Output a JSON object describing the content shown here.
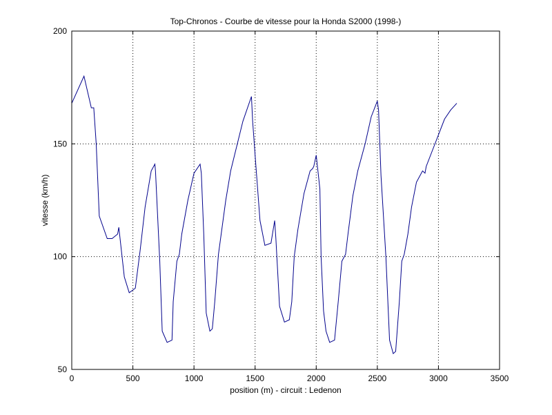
{
  "chart_data": {
    "type": "line",
    "title": "Top-Chronos - Courbe de vitesse pour la Honda S2000 (1998-)",
    "xlabel": "position (m) - circuit : Ledenon",
    "ylabel": "vitesse (km/h)",
    "xlim": [
      0,
      3500
    ],
    "ylim": [
      50,
      200
    ],
    "xticks": [
      0,
      500,
      1000,
      1500,
      2000,
      2500,
      3000,
      3500
    ],
    "yticks": [
      50,
      100,
      150,
      200
    ],
    "grid": true,
    "line_color": "#00008b",
    "series": [
      {
        "x": [
          0,
          100,
          160,
          180,
          200,
          225,
          290,
          330,
          375,
          385,
          430,
          470,
          520,
          560,
          600,
          650,
          680,
          685,
          720,
          740,
          780,
          820,
          830,
          860,
          880,
          900,
          950,
          1000,
          1050,
          1060,
          1080,
          1100,
          1130,
          1150,
          1170,
          1200,
          1260,
          1300,
          1400,
          1470,
          1480,
          1500,
          1540,
          1580,
          1630,
          1660,
          1670,
          1700,
          1740,
          1780,
          1800,
          1820,
          1850,
          1900,
          1950,
          1970,
          1980,
          2000,
          2030,
          2040,
          2060,
          2080,
          2110,
          2150,
          2180,
          2210,
          2240,
          2260,
          2300,
          2340,
          2400,
          2450,
          2500,
          2510,
          2530,
          2570,
          2600,
          2630,
          2650,
          2680,
          2700,
          2720,
          2750,
          2780,
          2820,
          2870,
          2890,
          2900,
          2950,
          3000,
          3050,
          3100,
          3150
        ],
        "y": [
          168,
          180,
          166,
          166,
          150,
          118,
          108,
          108,
          110,
          113,
          91,
          84,
          86,
          103,
          122,
          138,
          141,
          138,
          98,
          67,
          62,
          63,
          80,
          98,
          101,
          110,
          125,
          137,
          141,
          137,
          110,
          75,
          67,
          68,
          80,
          101,
          125,
          138,
          160,
          171,
          160,
          145,
          116,
          105,
          106,
          116,
          108,
          78,
          71,
          72,
          80,
          100,
          112,
          128,
          138,
          139,
          140,
          145,
          130,
          100,
          76,
          67,
          62,
          63,
          80,
          98,
          101,
          110,
          127,
          138,
          150,
          162,
          169,
          165,
          136,
          100,
          63,
          57,
          58,
          80,
          98,
          101,
          110,
          122,
          133,
          138,
          137,
          140,
          147,
          154,
          161,
          165,
          168
        ]
      }
    ]
  }
}
